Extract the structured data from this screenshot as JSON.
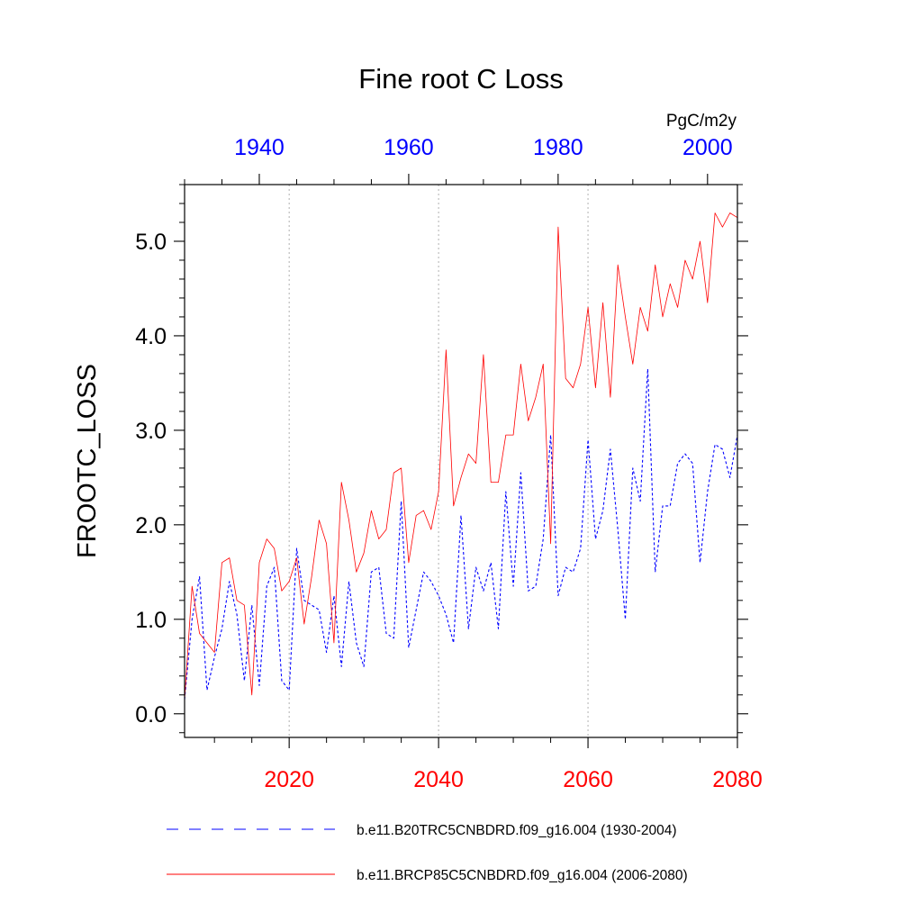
{
  "chart_data": {
    "type": "line",
    "title": "Fine root C Loss",
    "ylabel": "FROOTC_LOSS",
    "units": "PgC/m2y",
    "ylim": [
      -0.25,
      5.6
    ],
    "yticks": [
      {
        "value": 0.0,
        "label": "0.0"
      },
      {
        "value": 1.0,
        "label": "1.0"
      },
      {
        "value": 2.0,
        "label": "2.0"
      },
      {
        "value": 3.0,
        "label": "3.0"
      },
      {
        "value": 4.0,
        "label": "4.0"
      },
      {
        "value": 5.0,
        "label": "5.0"
      }
    ],
    "bottom_axis": {
      "range": [
        2006,
        2080
      ],
      "ticks": [
        {
          "value": 2020,
          "label": "2020"
        },
        {
          "value": 2040,
          "label": "2040"
        },
        {
          "value": 2060,
          "label": "2060"
        },
        {
          "value": 2080,
          "label": "2080"
        }
      ],
      "color": "#ff0000"
    },
    "top_axis": {
      "range": [
        1930,
        2004
      ],
      "ticks": [
        {
          "value": 1940,
          "label": "1940"
        },
        {
          "value": 1960,
          "label": "1960"
        },
        {
          "value": 1980,
          "label": "1980"
        },
        {
          "value": 2000,
          "label": "2000"
        }
      ],
      "color": "#0000ff"
    },
    "grid_x": [
      2020,
      2040,
      2060
    ],
    "legend_position": "bottom",
    "series": [
      {
        "name": "b.e11.B20TRC5CNBDRD.f09_g16.004 (1930-2004)",
        "color": "#0000ff",
        "dash": "dashed",
        "x_start": 1930,
        "values": [
          0.15,
          1.0,
          1.45,
          0.25,
          0.6,
          0.9,
          1.4,
          1.05,
          0.35,
          1.15,
          0.3,
          1.35,
          1.55,
          0.35,
          0.25,
          1.75,
          1.2,
          1.15,
          1.1,
          0.65,
          1.25,
          0.5,
          1.4,
          0.75,
          0.5,
          1.5,
          1.55,
          0.85,
          0.8,
          2.25,
          0.7,
          1.1,
          1.5,
          1.4,
          1.25,
          1.05,
          0.75,
          2.1,
          0.9,
          1.55,
          1.3,
          1.6,
          0.9,
          2.35,
          1.35,
          2.55,
          1.3,
          1.35,
          1.85,
          2.95,
          1.25,
          1.55,
          1.5,
          1.75,
          2.9,
          1.85,
          2.15,
          2.8,
          1.95,
          1.0,
          2.6,
          2.25,
          3.65,
          1.5,
          2.2,
          2.2,
          2.65,
          2.75,
          2.65,
          1.6,
          2.35,
          2.85,
          2.8,
          2.5,
          2.95
        ]
      },
      {
        "name": "b.e11.BRCP85C5CNBDRD.f09_g16.004 (2006-2080)",
        "color": "#ff0000",
        "dash": "solid",
        "x_start": 2006,
        "values": [
          0.15,
          1.35,
          0.85,
          0.75,
          0.65,
          1.6,
          1.65,
          1.2,
          1.15,
          0.2,
          1.6,
          1.85,
          1.75,
          1.3,
          1.4,
          1.65,
          0.95,
          1.45,
          2.05,
          1.8,
          0.75,
          2.45,
          2.05,
          1.5,
          1.7,
          2.15,
          1.85,
          1.95,
          2.55,
          2.6,
          1.6,
          2.1,
          2.15,
          1.95,
          2.35,
          3.85,
          2.2,
          2.5,
          2.75,
          2.65,
          3.8,
          2.45,
          2.45,
          2.95,
          2.95,
          3.7,
          3.1,
          3.35,
          3.7,
          1.8,
          5.15,
          3.55,
          3.45,
          3.7,
          4.3,
          3.45,
          4.35,
          3.35,
          4.75,
          4.2,
          3.7,
          4.3,
          4.05,
          4.75,
          4.2,
          4.55,
          4.3,
          4.8,
          4.6,
          5.0,
          4.35,
          5.3,
          5.15,
          5.3,
          5.25
        ]
      }
    ]
  }
}
